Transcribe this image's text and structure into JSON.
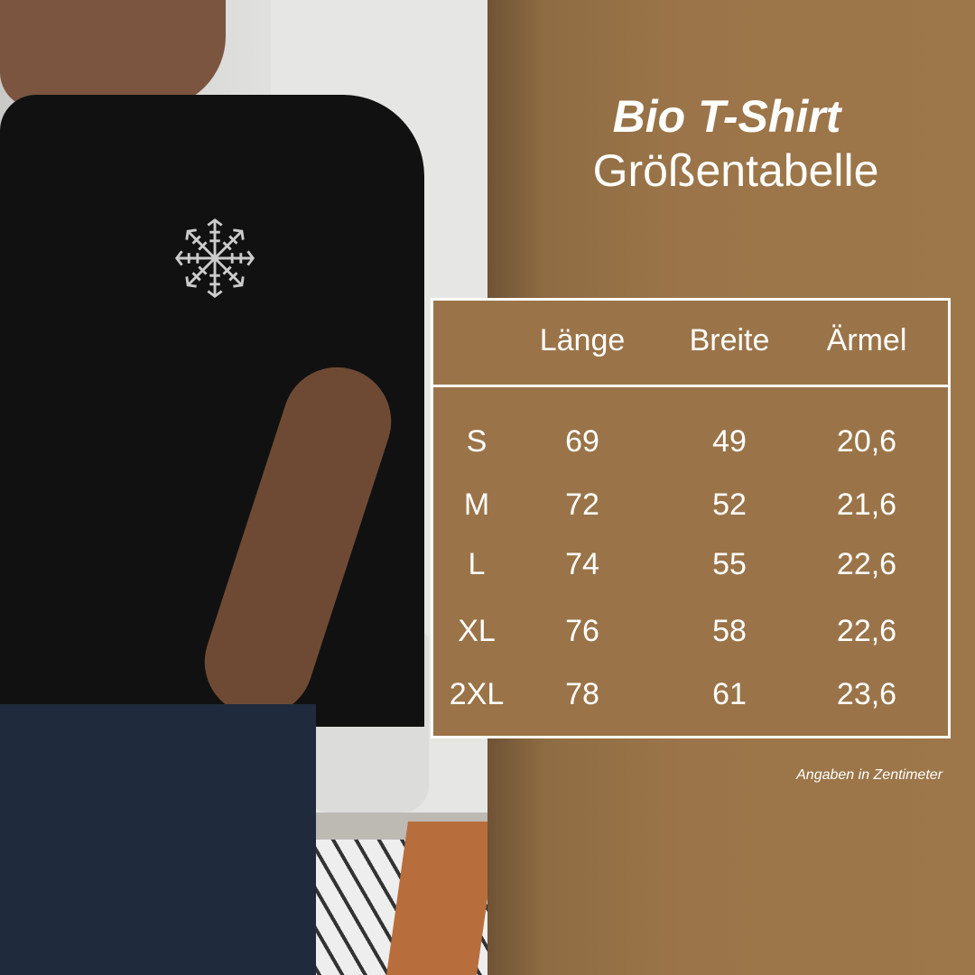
{
  "title": {
    "line1": "Bio T-Shirt",
    "line2": "Größentabelle"
  },
  "table": {
    "headers": [
      "",
      "Länge",
      "Breite",
      "Ärmel"
    ],
    "rows": [
      [
        "S",
        "69",
        "49",
        "20,6"
      ],
      [
        "M",
        "72",
        "52",
        "21,6"
      ],
      [
        "L",
        "74",
        "55",
        "22,6"
      ],
      [
        "XL",
        "76",
        "58",
        "22,6"
      ],
      [
        "2XL",
        "78",
        "61",
        "23,6"
      ]
    ]
  },
  "note": "Angaben in Zentimeter",
  "colors": {
    "background": "#9b7549",
    "text": "#ffffff",
    "shirt": "#111111"
  }
}
